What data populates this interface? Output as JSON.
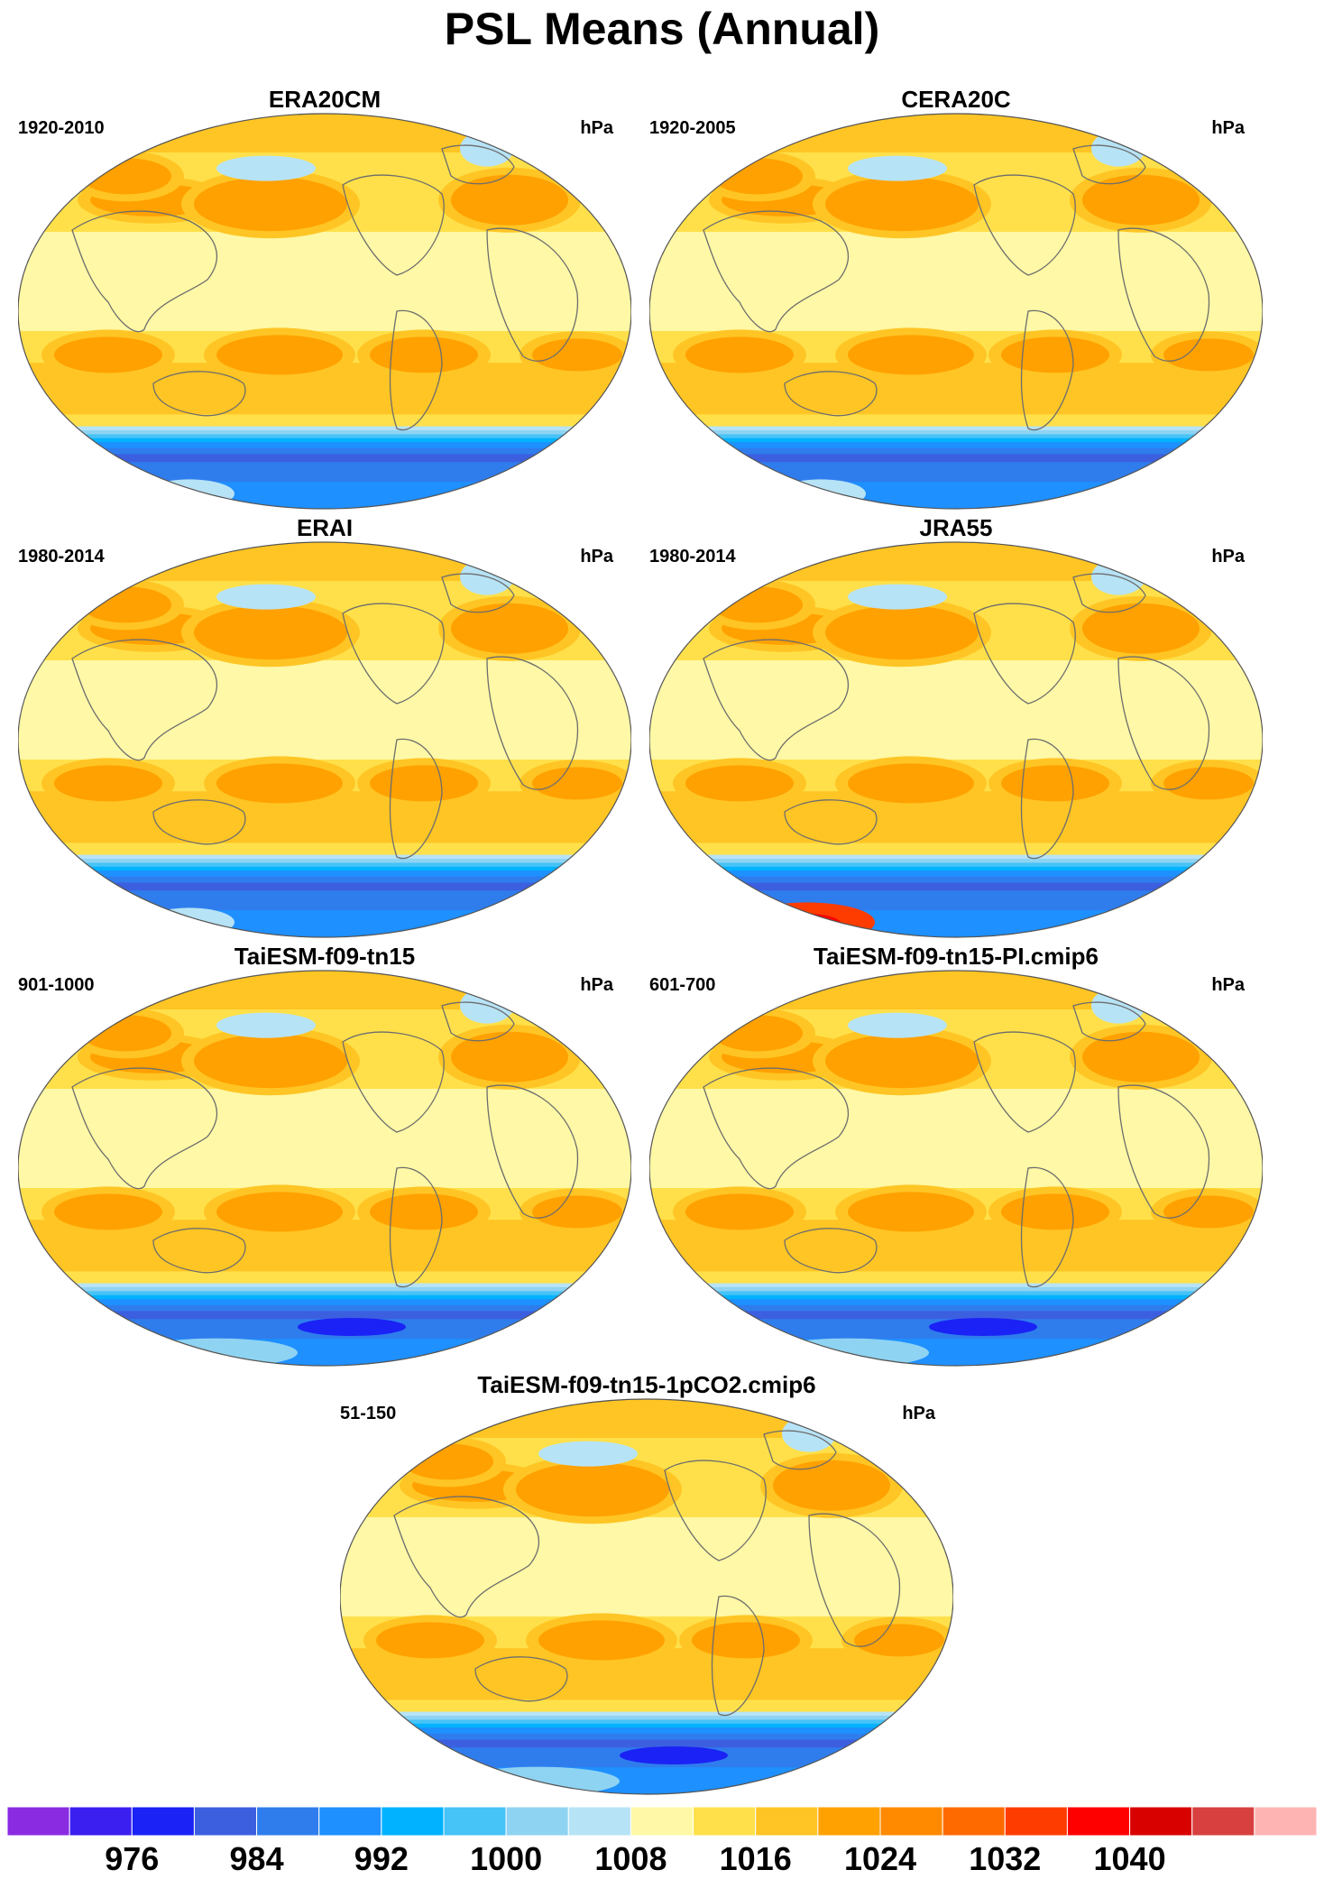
{
  "title": "PSL Means (Annual)",
  "panels": [
    {
      "name": "ERA20CM",
      "years": "1920-2010",
      "units": "hPa",
      "variant": "a"
    },
    {
      "name": "CERA20C",
      "years": "1920-2005",
      "units": "hPa",
      "variant": "b"
    },
    {
      "name": "ERAI",
      "years": "1980-2014",
      "units": "hPa",
      "variant": "c"
    },
    {
      "name": "JRA55",
      "years": "1980-2014",
      "units": "hPa",
      "variant": "d"
    },
    {
      "name": "TaiESM-f09-tn15",
      "years": "901-1000",
      "units": "hPa",
      "variant": "e"
    },
    {
      "name": "TaiESM-f09-tn15-PI.cmip6",
      "years": "601-700",
      "units": "hPa",
      "variant": "f"
    },
    {
      "name": "TaiESM-f09-tn15-1pCO2.cmip6",
      "years": "51-150",
      "units": "hPa",
      "variant": "g"
    }
  ],
  "colorbar": {
    "colors": [
      "#8a2be2",
      "#3b1ef0",
      "#1a22f5",
      "#3c5fe0",
      "#2f7ded",
      "#1e90ff",
      "#00b2ff",
      "#46c3f7",
      "#8fd3f2",
      "#b7e3f6",
      "#fff8a6",
      "#ffe04a",
      "#ffc524",
      "#ffa100",
      "#ff8a00",
      "#ff6a00",
      "#ff3c00",
      "#ff0000",
      "#d90000",
      "#d84040",
      "#ffb4b4"
    ],
    "labels": [
      "976",
      "984",
      "992",
      "1000",
      "1008",
      "1016",
      "1024",
      "1032",
      "1040"
    ]
  }
}
